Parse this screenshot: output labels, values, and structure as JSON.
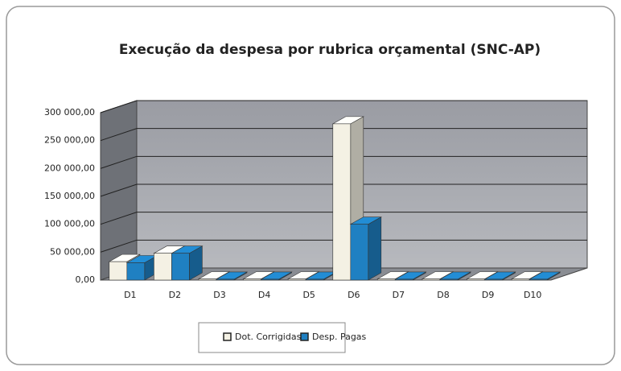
{
  "chart_data": {
    "type": "bar3d",
    "title": "Execução da despesa por rubrica orçamental (SNC-AP)",
    "categories": [
      "D1",
      "D2",
      "D3",
      "D4",
      "D5",
      "D6",
      "D7",
      "D8",
      "D9",
      "D10"
    ],
    "series": [
      {
        "name": "Dot. Corrigidas",
        "color": "#f4f1e4",
        "values": [
          33000,
          48000,
          2000,
          2000,
          2000,
          280000,
          2000,
          2000,
          2000,
          2000
        ]
      },
      {
        "name": "Desp. Pagas",
        "color": "#1f80c2",
        "values": [
          31000,
          48000,
          1500,
          1500,
          1500,
          100000,
          1500,
          1500,
          1500,
          1500
        ]
      }
    ],
    "ylim": [
      0,
      300000
    ],
    "yticks": [
      {
        "value": 0,
        "label": "0,00"
      },
      {
        "value": 50000,
        "label": "50 000,00"
      },
      {
        "value": 100000,
        "label": "100 000,00"
      },
      {
        "value": 150000,
        "label": "150 000,00"
      },
      {
        "value": 200000,
        "label": "200 000,00"
      },
      {
        "value": 250000,
        "label": "250 000,00"
      },
      {
        "value": 300000,
        "label": "300 000,00"
      }
    ],
    "grid": true,
    "legend": "bottom"
  }
}
